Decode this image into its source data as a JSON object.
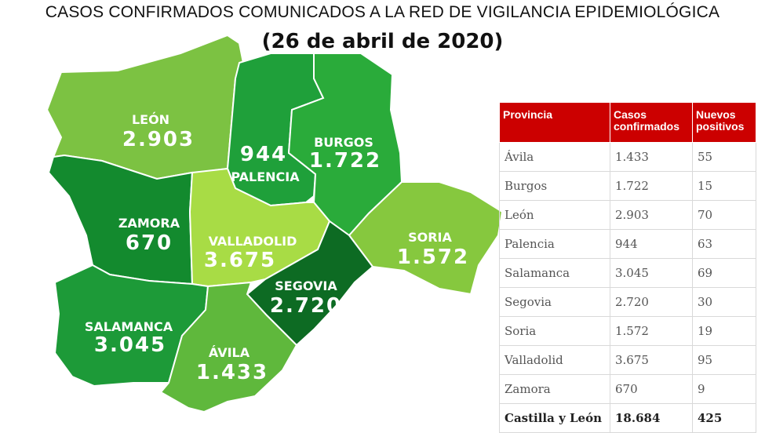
{
  "title": {
    "line1": "CASOS CONFIRMADOS COMUNICADOS A LA RED DE VIGILANCIA EPIDEMIOLÓGICA",
    "line2": "(26 de  abril  de 2020)"
  },
  "map": {
    "provinces": [
      {
        "id": "leon",
        "name": "LEÓN",
        "cases": "2.903",
        "color": "#7cc242"
      },
      {
        "id": "palencia",
        "name": "PALENCIA",
        "cases": "944",
        "color": "#1fa03a"
      },
      {
        "id": "burgos",
        "name": "BURGOS",
        "cases": "1.722",
        "color": "#2aab3a"
      },
      {
        "id": "zamora",
        "name": "ZAMORA",
        "cases": "670",
        "color": "#138a2e"
      },
      {
        "id": "valladolid",
        "name": "VALLADOLID",
        "cases": "3.675",
        "color": "#a8dc45"
      },
      {
        "id": "soria",
        "name": "SORIA",
        "cases": "1.572",
        "color": "#86c83e"
      },
      {
        "id": "segovia",
        "name": "SEGOVIA",
        "cases": "2.720",
        "color": "#0d6b23"
      },
      {
        "id": "salamanca",
        "name": "SALAMANCA",
        "cases": "3.045",
        "color": "#1d9a38"
      },
      {
        "id": "avila",
        "name": "ÁVILA",
        "cases": "1.433",
        "color": "#5fb83c"
      }
    ]
  },
  "table": {
    "headers": [
      "Provincia",
      "Casos confirmados",
      "Nuevos positivos"
    ],
    "header_color": "#cc0000",
    "rows": [
      [
        "Ávila",
        "1.433",
        "55"
      ],
      [
        "Burgos",
        "1.722",
        "15"
      ],
      [
        "León",
        "2.903",
        "70"
      ],
      [
        "Palencia",
        "944",
        "63"
      ],
      [
        "Salamanca",
        "3.045",
        "69"
      ],
      [
        "Segovia",
        "2.720",
        "30"
      ],
      [
        "Soria",
        "1.572",
        "19"
      ],
      [
        "Valladolid",
        "3.675",
        "95"
      ],
      [
        "Zamora",
        "670",
        "9"
      ]
    ],
    "total": [
      "Castilla y León",
      "18.684",
      "425"
    ]
  }
}
